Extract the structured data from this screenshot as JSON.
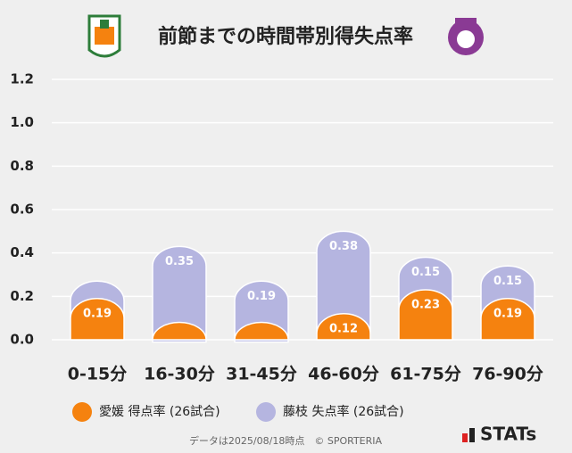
{
  "chart_data": {
    "type": "bar",
    "stacked": true,
    "title": "前節までの時間帯別得失点率",
    "categories": [
      "0-15分",
      "16-30分",
      "31-45分",
      "46-60分",
      "61-75分",
      "76-90分"
    ],
    "series": [
      {
        "name": "愛媛 得点率 (26試合)",
        "color": "#f5820f",
        "values": [
          0.19,
          0.08,
          0.08,
          0.12,
          0.23,
          0.19
        ]
      },
      {
        "name": "藤枝 失点率 (26試合)",
        "color": "#b5b5e0",
        "values": [
          0.08,
          0.35,
          0.19,
          0.38,
          0.15,
          0.15
        ]
      }
    ],
    "ylim": [
      0,
      1.2
    ],
    "yticks": [
      {
        "value": 0,
        "label": "0.0"
      },
      0.2,
      0.4,
      0.6,
      0.8,
      {
        "value": 1,
        "label": "1.0"
      },
      1.2
    ],
    "grid": true,
    "footnote": "データは2025/08/18時点　© SPORTERIA",
    "brand": "STATs"
  }
}
